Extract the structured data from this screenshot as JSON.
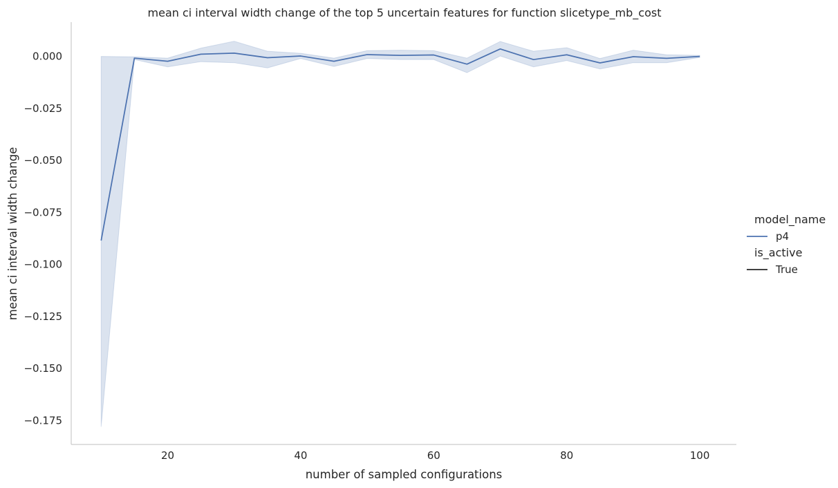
{
  "chart_data": {
    "type": "line",
    "title": "mean ci interval width change of the top 5 uncertain features for function slicetype_mb_cost",
    "xlabel": "number of sampled configurations",
    "ylabel": "mean ci interval width change",
    "xlim": [
      5.5,
      105.5
    ],
    "ylim": [
      -0.1865,
      0.0165
    ],
    "x_ticks": [
      20,
      40,
      60,
      80,
      100
    ],
    "x_tick_labels": [
      "20",
      "40",
      "60",
      "80",
      "100"
    ],
    "y_ticks": [
      0.0,
      -0.025,
      -0.05,
      -0.075,
      -0.1,
      -0.125,
      -0.15,
      -0.175
    ],
    "y_tick_labels": [
      "0.000",
      "−0.025",
      "−0.050",
      "−0.075",
      "−0.100",
      "−0.125",
      "−0.150",
      "−0.175"
    ],
    "grid": false,
    "legend": {
      "placement": "right",
      "groups": [
        {
          "title": "model_name",
          "entries": [
            {
              "label": "p4",
              "color": "#4c72b0"
            }
          ]
        },
        {
          "title": "is_active",
          "entries": [
            {
              "label": "True",
              "color": "#262626"
            }
          ]
        }
      ]
    },
    "series": [
      {
        "name": "p4",
        "color": "#4c72b0",
        "x": [
          10,
          15,
          20,
          25,
          30,
          35,
          40,
          45,
          50,
          55,
          60,
          65,
          70,
          75,
          80,
          85,
          90,
          95,
          100
        ],
        "y": [
          -0.0885,
          -0.0008,
          -0.0023,
          0.0011,
          0.0016,
          -0.0006,
          0.0002,
          -0.0023,
          0.0009,
          0.0005,
          0.0007,
          -0.0037,
          0.0036,
          -0.0015,
          0.0008,
          -0.0031,
          -0.0001,
          -0.0009,
          0.0
        ],
        "ci_low": [
          -0.178,
          -0.0015,
          -0.005,
          -0.0025,
          -0.003,
          -0.0055,
          -0.001,
          -0.0048,
          -0.001,
          -0.0015,
          -0.0015,
          -0.0078,
          0.0002,
          -0.005,
          -0.002,
          -0.006,
          -0.003,
          -0.003,
          -0.0005
        ],
        "ci_high": [
          0.0,
          -0.0002,
          -0.0008,
          0.004,
          0.0073,
          0.0025,
          0.0015,
          -0.0008,
          0.0028,
          0.003,
          0.0028,
          -0.0008,
          0.0072,
          0.0025,
          0.0042,
          -0.001,
          0.003,
          0.0008,
          0.0005
        ]
      }
    ]
  }
}
